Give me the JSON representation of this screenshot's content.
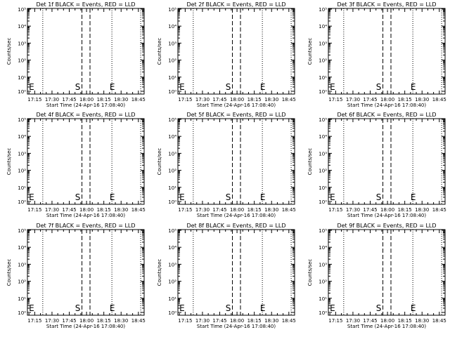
{
  "chart_data": [
    {
      "type": "line",
      "title": "Det 1f BLACK = Events, RED = LLD",
      "xlabel": "Start Time (24-Apr-16 17:08:40)",
      "ylabel": "Counts/sec",
      "x_ticks": [
        "17:15",
        "17:30",
        "17:45",
        "18:00",
        "18:15",
        "18:30",
        "18:45"
      ],
      "y_ticks": [
        "10⁰",
        "10¹",
        "10²",
        "10³",
        "10⁴",
        "10⁵"
      ],
      "markers": [
        {
          "label": "E",
          "x": "17:10"
        },
        {
          "label": "S",
          "x": "17:50"
        },
        {
          "label": "E",
          "x": "18:20"
        }
      ],
      "dotted_lines": [
        "17:22",
        "18:22",
        "18:47"
      ],
      "dashed_lines": [
        "17:56",
        "18:03"
      ],
      "series": []
    },
    {
      "type": "line",
      "title": "Det 2f BLACK = Events, RED = LLD",
      "xlabel": "Start Time (24-Apr-16 17:08:40)",
      "ylabel": "Counts/sec",
      "x_ticks": [
        "17:15",
        "17:30",
        "17:45",
        "18:00",
        "18:15",
        "18:30",
        "18:45"
      ],
      "y_ticks": [
        "10⁰",
        "10¹",
        "10²",
        "10³",
        "10⁴",
        "10⁵"
      ],
      "markers": [
        {
          "label": "E",
          "x": "17:10"
        },
        {
          "label": "S",
          "x": "17:50"
        },
        {
          "label": "E",
          "x": "18:20"
        }
      ],
      "dotted_lines": [
        "17:22",
        "18:22",
        "18:47"
      ],
      "dashed_lines": [
        "17:56",
        "18:03"
      ],
      "series": []
    },
    {
      "type": "line",
      "title": "Det 3f BLACK = Events, RED = LLD",
      "xlabel": "Start Time (24-Apr-16 17:08:40)",
      "ylabel": "Counts/sec",
      "x_ticks": [
        "17:15",
        "17:30",
        "17:45",
        "18:00",
        "18:15",
        "18:30",
        "18:45"
      ],
      "y_ticks": [
        "10⁰",
        "10¹",
        "10²",
        "10³",
        "10⁴",
        "10⁵"
      ],
      "markers": [
        {
          "label": "E",
          "x": "17:10"
        },
        {
          "label": "S",
          "x": "17:50"
        },
        {
          "label": "E",
          "x": "18:20"
        }
      ],
      "dotted_lines": [
        "17:22",
        "18:22",
        "18:47"
      ],
      "dashed_lines": [
        "17:56",
        "18:03"
      ],
      "series": []
    },
    {
      "type": "line",
      "title": "Det 4f BLACK = Events, RED = LLD",
      "xlabel": "Start Time (24-Apr-16 17:08:40)",
      "ylabel": "Counts/sec",
      "x_ticks": [
        "17:15",
        "17:30",
        "17:45",
        "18:00",
        "18:15",
        "18:30",
        "18:45"
      ],
      "y_ticks": [
        "10⁰",
        "10¹",
        "10²",
        "10³",
        "10⁴",
        "10⁵"
      ],
      "markers": [
        {
          "label": "E",
          "x": "17:10"
        },
        {
          "label": "S",
          "x": "17:50"
        },
        {
          "label": "E",
          "x": "18:20"
        }
      ],
      "dotted_lines": [
        "17:22",
        "18:22",
        "18:47"
      ],
      "dashed_lines": [
        "17:56",
        "18:03"
      ],
      "series": []
    },
    {
      "type": "line",
      "title": "Det 5f BLACK = Events, RED = LLD",
      "xlabel": "Start Time (24-Apr-16 17:08:40)",
      "ylabel": "Counts/sec",
      "x_ticks": [
        "17:15",
        "17:30",
        "17:45",
        "18:00",
        "18:15",
        "18:30",
        "18:45"
      ],
      "y_ticks": [
        "10⁰",
        "10¹",
        "10²",
        "10³",
        "10⁴",
        "10⁵"
      ],
      "markers": [
        {
          "label": "E",
          "x": "17:10"
        },
        {
          "label": "S",
          "x": "17:50"
        },
        {
          "label": "E",
          "x": "18:20"
        }
      ],
      "dotted_lines": [
        "17:22",
        "18:22",
        "18:47"
      ],
      "dashed_lines": [
        "17:56",
        "18:03"
      ],
      "series": []
    },
    {
      "type": "line",
      "title": "Det 6f BLACK = Events, RED = LLD",
      "xlabel": "Start Time (24-Apr-16 17:08:40)",
      "ylabel": "Counts/sec",
      "x_ticks": [
        "17:15",
        "17:30",
        "17:45",
        "18:00",
        "18:15",
        "18:30",
        "18:45"
      ],
      "y_ticks": [
        "10⁰",
        "10¹",
        "10²",
        "10³",
        "10⁴",
        "10⁵"
      ],
      "markers": [
        {
          "label": "E",
          "x": "17:10"
        },
        {
          "label": "S",
          "x": "17:50"
        },
        {
          "label": "E",
          "x": "18:20"
        }
      ],
      "dotted_lines": [
        "17:22",
        "18:22",
        "18:47"
      ],
      "dashed_lines": [
        "17:56",
        "18:03"
      ],
      "series": []
    },
    {
      "type": "line",
      "title": "Det 7f BLACK = Events, RED = LLD",
      "xlabel": "Start Time (24-Apr-16 17:08:40)",
      "ylabel": "Counts/sec",
      "x_ticks": [
        "17:15",
        "17:30",
        "17:45",
        "18:00",
        "18:15",
        "18:30",
        "18:45"
      ],
      "y_ticks": [
        "10⁰",
        "10¹",
        "10²",
        "10³",
        "10⁴",
        "10⁵"
      ],
      "markers": [
        {
          "label": "E",
          "x": "17:10"
        },
        {
          "label": "S",
          "x": "17:50"
        },
        {
          "label": "E",
          "x": "18:20"
        }
      ],
      "dotted_lines": [
        "17:22",
        "18:22",
        "18:47"
      ],
      "dashed_lines": [
        "17:56",
        "18:03"
      ],
      "series": []
    },
    {
      "type": "line",
      "title": "Det 8f BLACK = Events, RED = LLD",
      "xlabel": "Start Time (24-Apr-16 17:08:40)",
      "ylabel": "Counts/sec",
      "x_ticks": [
        "17:15",
        "17:30",
        "17:45",
        "18:00",
        "18:15",
        "18:30",
        "18:45"
      ],
      "y_ticks": [
        "10⁰",
        "10¹",
        "10²",
        "10³",
        "10⁴",
        "10⁵"
      ],
      "markers": [
        {
          "label": "E",
          "x": "17:10"
        },
        {
          "label": "S",
          "x": "17:50"
        },
        {
          "label": "E",
          "x": "18:20"
        }
      ],
      "dotted_lines": [
        "17:22",
        "18:22",
        "18:47"
      ],
      "dashed_lines": [
        "17:56",
        "18:03"
      ],
      "series": []
    },
    {
      "type": "line",
      "title": "Det 9f BLACK = Events, RED = LLD",
      "xlabel": "Start Time (24-Apr-16 17:08:40)",
      "ylabel": "Counts/sec",
      "x_ticks": [
        "17:15",
        "17:30",
        "17:45",
        "18:00",
        "18:15",
        "18:30",
        "18:45"
      ],
      "y_ticks": [
        "10⁰",
        "10¹",
        "10²",
        "10³",
        "10⁴",
        "10⁵"
      ],
      "markers": [
        {
          "label": "E",
          "x": "17:10"
        },
        {
          "label": "S",
          "x": "17:50"
        },
        {
          "label": "E",
          "x": "18:20"
        }
      ],
      "dotted_lines": [
        "17:22",
        "18:22",
        "18:47"
      ],
      "dashed_lines": [
        "17:56",
        "18:03"
      ],
      "series": []
    }
  ]
}
